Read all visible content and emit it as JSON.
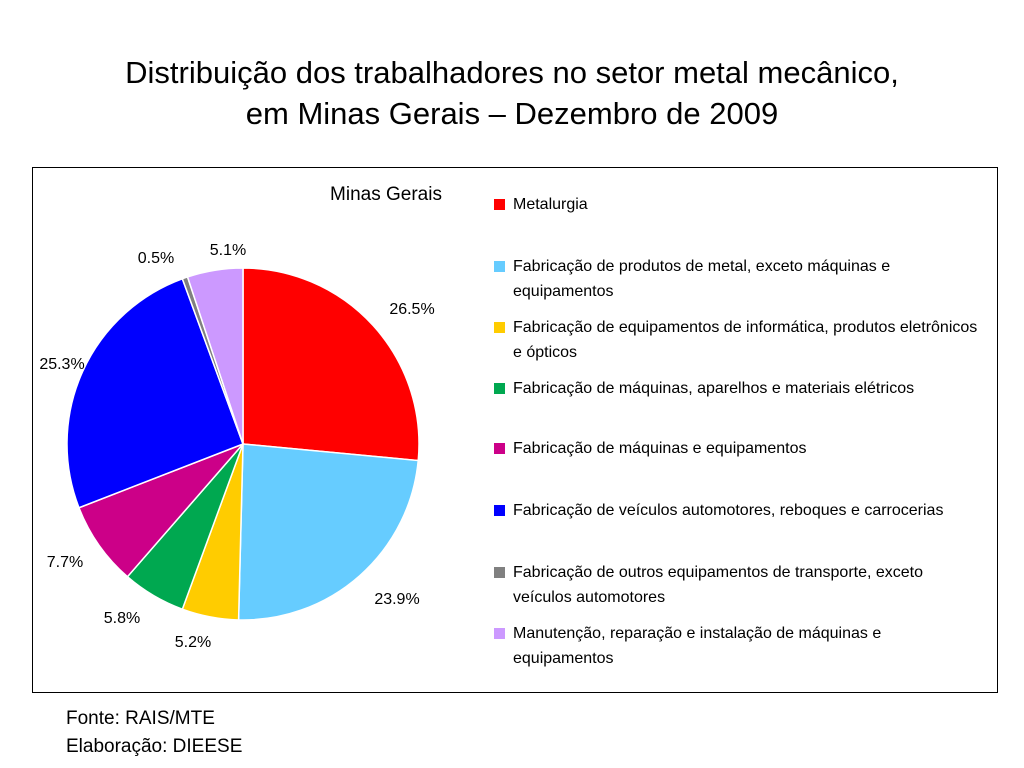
{
  "slide": {
    "title_line1": "Distribuição dos trabalhadores no setor metal mecânico,",
    "title_line2": "em Minas Gerais – Dezembro de 2009"
  },
  "chart_data": {
    "type": "pie",
    "title": "Minas Gerais",
    "legend_position": "right",
    "categories": [
      "Metalurgia",
      "Fabricação de produtos de metal, exceto máquinas e equipamentos",
      "Fabricação de equipamentos de informática, produtos eletrônicos e ópticos",
      "Fabricação de máquinas, aparelhos e materiais elétricos",
      "Fabricação de máquinas e equipamentos",
      "Fabricação de veículos automotores, reboques e carrocerias",
      "Fabricação de outros equipamentos de transporte, exceto veículos automotores",
      "Manutenção, reparação e instalação de máquinas e equipamentos"
    ],
    "values": [
      26.5,
      23.9,
      5.2,
      5.8,
      7.7,
      25.3,
      0.5,
      5.1
    ],
    "labels": [
      "26.5%",
      "23.9%",
      "5.2%",
      "5.8%",
      "7.7%",
      "25.3%",
      "0.5%",
      "5.1%"
    ],
    "colors": [
      "#FF0000",
      "#66CCFF",
      "#FFCC00",
      "#00A850",
      "#CC0088",
      "#0000FF",
      "#808080",
      "#CC99FF"
    ]
  },
  "footer": {
    "source": "Fonte: RAIS/MTE",
    "elaboration": "Elaboração: DIEESE"
  }
}
